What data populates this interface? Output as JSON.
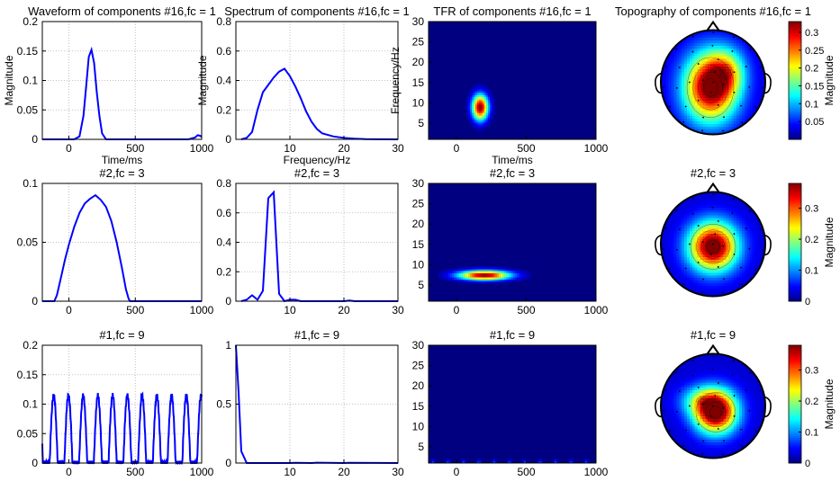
{
  "colors": {
    "line": "#0000ff",
    "grid": "#b0b0b0",
    "axis": "#000000"
  },
  "colormap": "jet",
  "chart_data": [
    {
      "type": "line",
      "panel": "waveform",
      "row": 0,
      "title": "Waveform of components #16,fc = 1",
      "xlabel": "Time/ms",
      "ylabel": "Magnitude",
      "xlim": [
        -200,
        1000
      ],
      "ylim": [
        0,
        0.2
      ],
      "xticks": [
        0,
        500,
        1000
      ],
      "yticks": [
        0,
        0.05,
        0.1,
        0.15,
        0.2
      ],
      "grid": true,
      "series": [
        {
          "x": [
            -200,
            40,
            80,
            110,
            130,
            150,
            170,
            190,
            210,
            230,
            250,
            280,
            320,
            400,
            600,
            900,
            950,
            970,
            990,
            1000
          ],
          "y": [
            0,
            0,
            0.005,
            0.04,
            0.09,
            0.14,
            0.152,
            0.13,
            0.08,
            0.04,
            0.01,
            0,
            0,
            0,
            0,
            0,
            0.003,
            0.007,
            0.006,
            0.004
          ]
        }
      ]
    },
    {
      "type": "line",
      "panel": "spectrum",
      "row": 0,
      "title": "Spectrum of components #16,fc = 1",
      "xlabel": "Frequency/Hz",
      "ylabel": "Magnitude",
      "xlim": [
        0,
        30
      ],
      "ylim": [
        0,
        0.8
      ],
      "xticks": [
        10,
        20,
        30
      ],
      "yticks": [
        0,
        0.2,
        0.4,
        0.6,
        0.8
      ],
      "grid": true,
      "series": [
        {
          "x": [
            1,
            2,
            3,
            4,
            5,
            6,
            7,
            8,
            9,
            10,
            11,
            12,
            13,
            14,
            15,
            16,
            18,
            20,
            22,
            24,
            30
          ],
          "y": [
            0,
            0.01,
            0.05,
            0.2,
            0.32,
            0.37,
            0.42,
            0.46,
            0.48,
            0.43,
            0.36,
            0.28,
            0.19,
            0.12,
            0.07,
            0.04,
            0.02,
            0.01,
            0.005,
            0.002,
            0
          ]
        }
      ]
    },
    {
      "type": "heatmap",
      "panel": "tfr",
      "row": 0,
      "title": "TFR of components #16,fc = 1",
      "xlabel": "Time/ms",
      "ylabel": "Frequency/Hz",
      "xlim": [
        -200,
        1000
      ],
      "ylim": [
        1,
        30
      ],
      "xticks": [
        0,
        500,
        1000
      ],
      "yticks": [
        5,
        10,
        15,
        20,
        25,
        30
      ],
      "blobs": [
        {
          "t": 170,
          "f": 9,
          "st": 40,
          "sf": 2.2,
          "a": 1.0
        }
      ]
    },
    {
      "type": "topography",
      "panel": "topo",
      "row": 0,
      "title": "Topography of components #16,fc = 1",
      "colorbar_label": "Magnitude",
      "clim": [
        0,
        0.33
      ],
      "cticks": [
        0.05,
        0.1,
        0.15,
        0.2,
        0.25,
        0.3
      ],
      "blobs": [
        {
          "x": -0.05,
          "y": -0.1,
          "sx": 0.35,
          "sy": 0.45,
          "a": 0.95
        },
        {
          "x": 0.25,
          "y": 0.2,
          "sx": 0.25,
          "sy": 0.3,
          "a": 0.35
        }
      ]
    },
    {
      "type": "line",
      "panel": "waveform",
      "row": 1,
      "title": "#2,fc = 3",
      "xlabel": "",
      "ylabel": "",
      "xlim": [
        -200,
        1000
      ],
      "ylim": [
        0,
        0.1
      ],
      "xticks": [
        0,
        500,
        1000
      ],
      "yticks": [
        0,
        0.05,
        0.1
      ],
      "grid": true,
      "series": [
        {
          "x": [
            -200,
            -110,
            -90,
            -60,
            -30,
            0,
            40,
            80,
            120,
            160,
            200,
            240,
            280,
            320,
            360,
            400,
            430,
            450,
            460,
            1000
          ],
          "y": [
            0,
            0,
            0.005,
            0.02,
            0.035,
            0.048,
            0.063,
            0.075,
            0.083,
            0.087,
            0.09,
            0.086,
            0.08,
            0.068,
            0.05,
            0.028,
            0.01,
            0.002,
            0,
            0
          ]
        }
      ]
    },
    {
      "type": "line",
      "panel": "spectrum",
      "row": 1,
      "title": "#2,fc = 3",
      "xlabel": "",
      "ylabel": "",
      "xlim": [
        0,
        30
      ],
      "ylim": [
        0,
        0.8
      ],
      "xticks": [
        10,
        20,
        30
      ],
      "yticks": [
        0,
        0.2,
        0.4,
        0.6,
        0.8
      ],
      "grid": true,
      "series": [
        {
          "x": [
            1,
            2,
            3,
            4,
            5,
            6,
            7,
            8,
            9,
            10,
            11,
            12,
            20,
            21,
            22,
            30
          ],
          "y": [
            0,
            0.01,
            0.04,
            0.01,
            0.07,
            0.7,
            0.74,
            0.05,
            0,
            0.01,
            0.01,
            0,
            0,
            0.005,
            0,
            0
          ]
        }
      ]
    },
    {
      "type": "heatmap",
      "panel": "tfr",
      "row": 1,
      "title": "#2,fc = 3",
      "xlabel": "",
      "ylabel": "",
      "xlim": [
        -200,
        1000
      ],
      "ylim": [
        1,
        30
      ],
      "xticks": [
        0,
        500,
        1000
      ],
      "yticks": [
        5,
        10,
        15,
        20,
        25,
        30
      ],
      "blobs": [
        {
          "t": 200,
          "f": 7.5,
          "st": 130,
          "sf": 0.8,
          "a": 1.0
        }
      ]
    },
    {
      "type": "topography",
      "panel": "topo",
      "row": 1,
      "title": "#2,fc = 3",
      "colorbar_label": "Magnitude",
      "clim": [
        0,
        0.38
      ],
      "cticks": [
        0,
        0.1,
        0.2,
        0.3
      ],
      "blobs": [
        {
          "x": 0.0,
          "y": -0.05,
          "sx": 0.32,
          "sy": 0.32,
          "a": 1.0
        }
      ]
    },
    {
      "type": "line",
      "panel": "waveform",
      "row": 2,
      "title": "#1,fc = 9",
      "xlabel": "",
      "ylabel": "",
      "xlim": [
        -200,
        1000
      ],
      "ylim": [
        0,
        0.2
      ],
      "xticks": [
        0,
        500,
        1000
      ],
      "yticks": [
        0,
        0.05,
        0.1,
        0.15,
        0.2
      ],
      "grid": true,
      "periodic": {
        "period": 111,
        "offset": -145,
        "peak": 0.115,
        "start": -200,
        "end": 1000
      }
    },
    {
      "type": "line",
      "panel": "spectrum",
      "row": 2,
      "title": "#1,fc = 9",
      "xlabel": "",
      "ylabel": "",
      "xlim": [
        0,
        30
      ],
      "ylim": [
        0,
        1
      ],
      "xticks": [
        10,
        20,
        30
      ],
      "yticks": [
        0,
        0.5,
        1
      ],
      "grid": true,
      "series": [
        {
          "x": [
            0,
            0.5,
            1,
            2,
            10,
            11,
            14,
            15,
            20,
            21,
            30
          ],
          "y": [
            1,
            0.6,
            0.1,
            0,
            0,
            0.002,
            0,
            0.003,
            0,
            0.002,
            0
          ]
        }
      ]
    },
    {
      "type": "heatmap",
      "panel": "tfr",
      "row": 2,
      "title": "#1,fc = 9",
      "xlabel": "",
      "ylabel": "",
      "xlim": [
        -200,
        1000
      ],
      "ylim": [
        1,
        30
      ],
      "xticks": [
        0,
        500,
        1000
      ],
      "yticks": [
        5,
        10,
        15,
        20,
        25,
        30
      ],
      "blobs": [
        {
          "t": -170,
          "f": 1,
          "st": 10,
          "sf": 0.6,
          "a": 0.25
        },
        {
          "t": -60,
          "f": 1,
          "st": 10,
          "sf": 0.6,
          "a": 0.25
        },
        {
          "t": 50,
          "f": 1,
          "st": 10,
          "sf": 0.6,
          "a": 0.25
        },
        {
          "t": 160,
          "f": 1,
          "st": 10,
          "sf": 0.6,
          "a": 0.25
        },
        {
          "t": 270,
          "f": 1,
          "st": 10,
          "sf": 0.6,
          "a": 0.25
        },
        {
          "t": 380,
          "f": 1,
          "st": 10,
          "sf": 0.6,
          "a": 0.25
        },
        {
          "t": 490,
          "f": 1,
          "st": 10,
          "sf": 0.6,
          "a": 0.25
        },
        {
          "t": 600,
          "f": 1,
          "st": 10,
          "sf": 0.6,
          "a": 0.25
        },
        {
          "t": 710,
          "f": 1,
          "st": 10,
          "sf": 0.6,
          "a": 0.25
        },
        {
          "t": 820,
          "f": 1,
          "st": 10,
          "sf": 0.6,
          "a": 0.25
        },
        {
          "t": 930,
          "f": 1,
          "st": 10,
          "sf": 0.6,
          "a": 0.25
        }
      ]
    },
    {
      "type": "topography",
      "panel": "topo",
      "row": 2,
      "title": "#1,fc = 9",
      "colorbar_label": "Magnitude",
      "clim": [
        0,
        0.38
      ],
      "cticks": [
        0,
        0.1,
        0.2,
        0.3
      ],
      "blobs": [
        {
          "x": 0.05,
          "y": -0.12,
          "sx": 0.28,
          "sy": 0.28,
          "a": 1.0
        },
        {
          "x": -0.2,
          "y": 0.1,
          "sx": 0.3,
          "sy": 0.2,
          "a": 0.3
        }
      ]
    }
  ]
}
